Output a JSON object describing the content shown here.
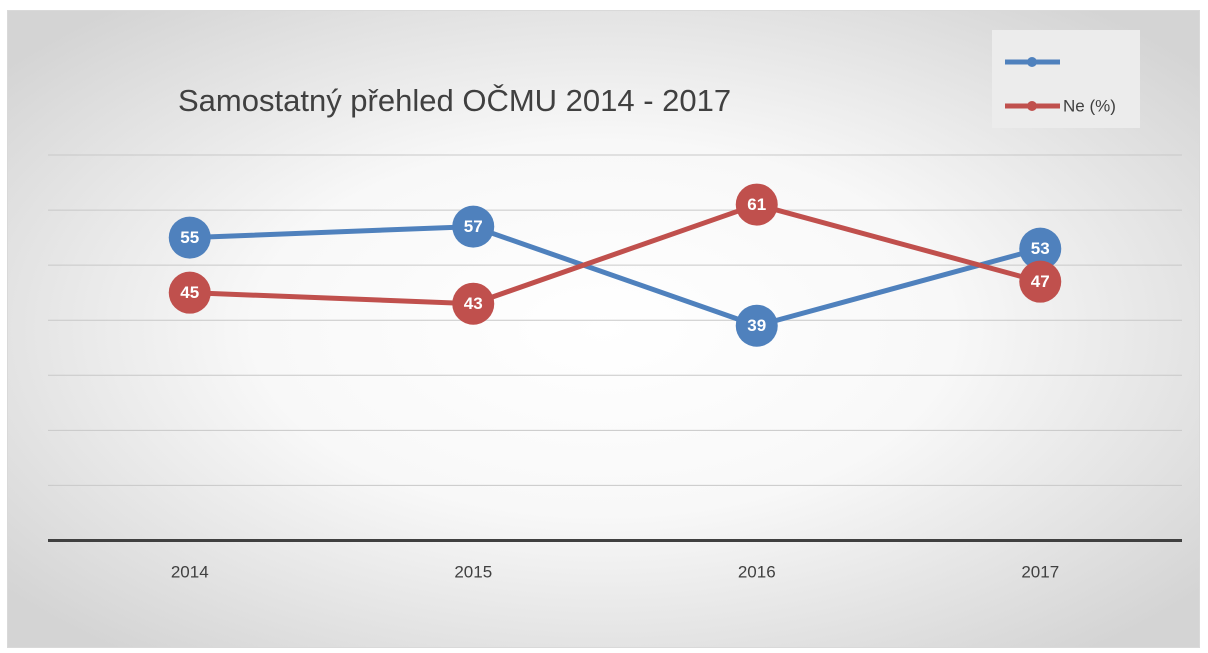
{
  "chart_data": {
    "type": "line",
    "title": "Samostatný přehled OČMU 2014 - 2017",
    "categories": [
      "2014",
      "2015",
      "2016",
      "2017"
    ],
    "series": [
      {
        "color": "#4f81bd",
        "values": [
          55,
          57,
          39,
          53
        ]
      },
      {
        "name": "Ne (%)",
        "color": "#c0504d",
        "values": [
          45,
          43,
          61,
          47
        ]
      }
    ],
    "ylim": [
      0,
      70
    ],
    "yticks": [
      0,
      10,
      20,
      30,
      40,
      50,
      60,
      70
    ],
    "grid": true,
    "legend": "top-right"
  }
}
